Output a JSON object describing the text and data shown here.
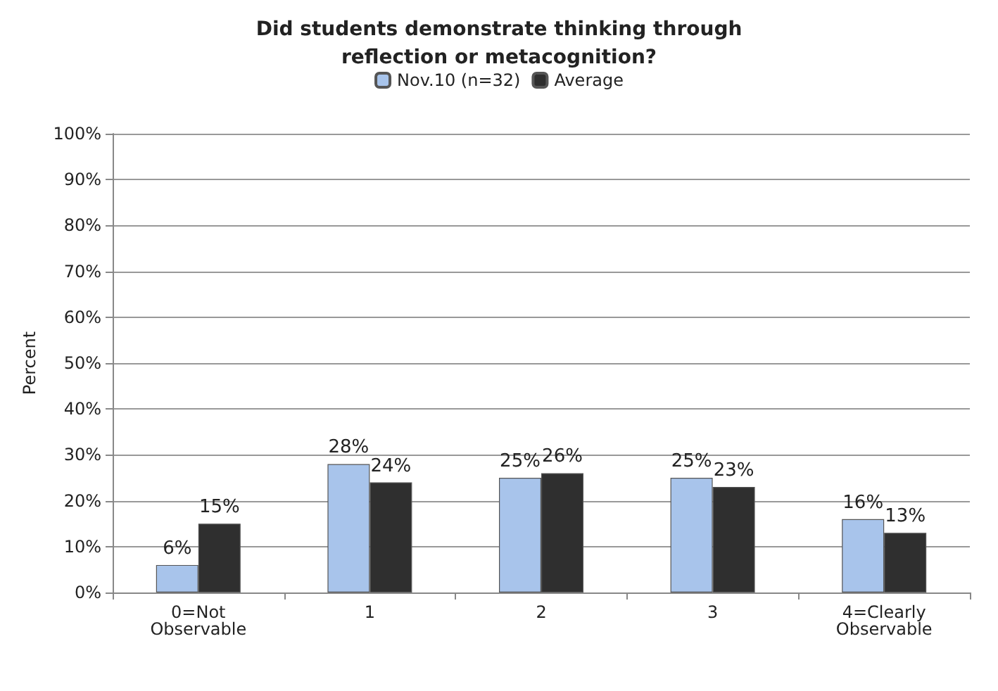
{
  "chart_data": {
    "type": "bar",
    "title": "Did students demonstrate thinking through\nreflection or metacognition?",
    "ylabel": "Percent",
    "categories": [
      "0=Not\nObservable",
      "1",
      "2",
      "3",
      "4=Clearly\nObservable"
    ],
    "series": [
      {
        "name": "Nov.10 (n=32)",
        "color": "#a8c4eb",
        "values": [
          6,
          28,
          25,
          25,
          16
        ],
        "value_labels": [
          "6%",
          "28%",
          "25%",
          "25%",
          "16%"
        ]
      },
      {
        "name": "Average",
        "color": "#2f2f2f",
        "values": [
          15,
          24,
          26,
          23,
          13
        ],
        "value_labels": [
          "15%",
          "24%",
          "26%",
          "23%",
          "13%"
        ]
      }
    ],
    "ylim": [
      0,
      100
    ],
    "yticks": [
      {
        "value": 0,
        "label": "0%"
      },
      {
        "value": 10,
        "label": "10%"
      },
      {
        "value": 20,
        "label": "20%"
      },
      {
        "value": 30,
        "label": "30%"
      },
      {
        "value": 40,
        "label": "40%"
      },
      {
        "value": 50,
        "label": "50%"
      },
      {
        "value": 60,
        "label": "60%"
      },
      {
        "value": 70,
        "label": "70%"
      },
      {
        "value": 80,
        "label": "80%"
      },
      {
        "value": 90,
        "label": "90%"
      },
      {
        "value": 100,
        "label": "100%"
      }
    ],
    "grid": "y",
    "legend": "top"
  }
}
